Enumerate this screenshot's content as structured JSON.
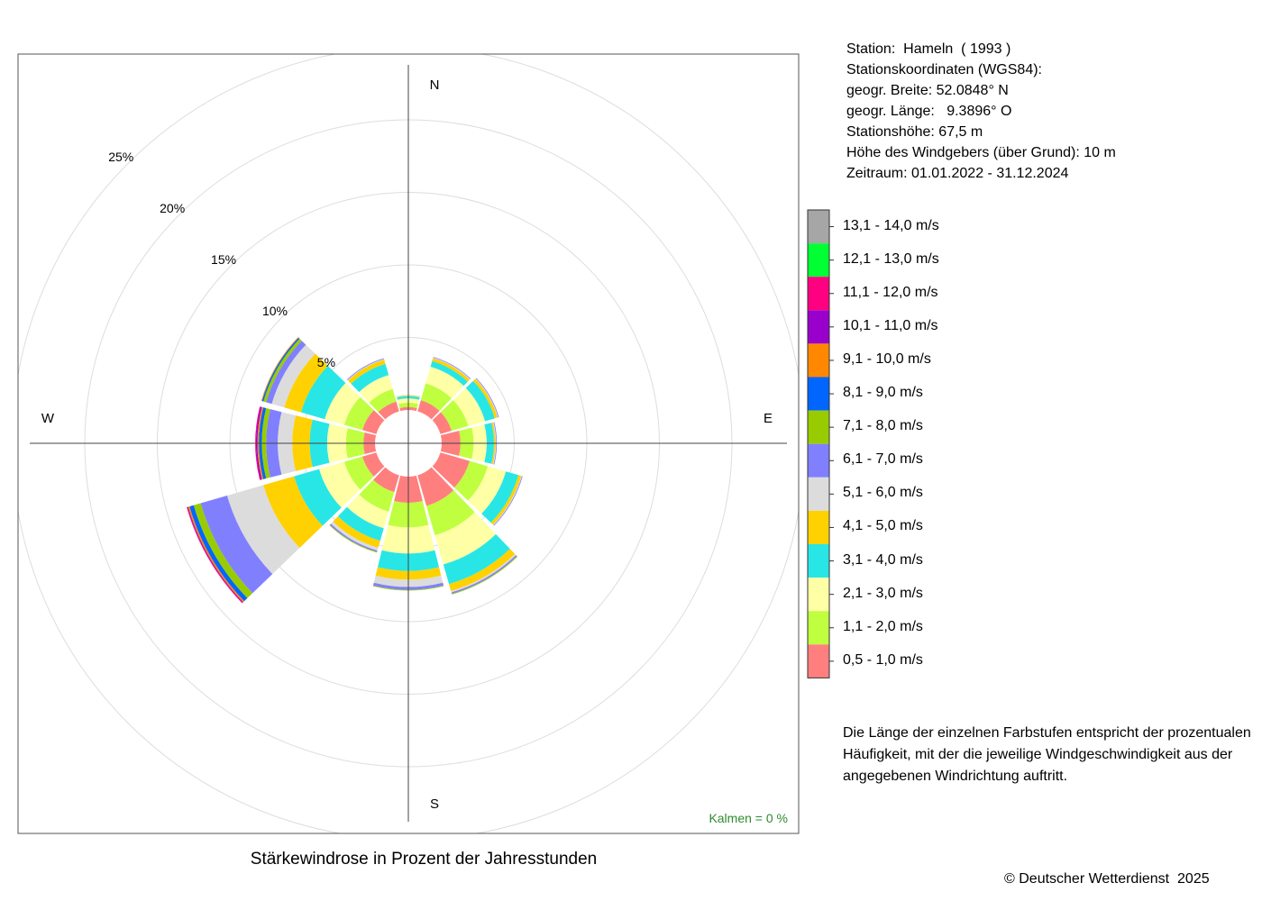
{
  "station": {
    "lines": [
      "Station:  Hameln  ( 1993 )",
      "Stationskoordinaten (WGS84):",
      "geogr. Breite: 52.0848° N",
      "geogr. Länge:   9.3896° O",
      "Stationshöhe: 67,5 m",
      "Höhe des Windgebers (über Grund): 10 m",
      "Zeitraum: 01.01.2022 - 31.12.2024"
    ]
  },
  "description": {
    "lines": [
      "Die Länge der einzelnen Farbstufen entspricht der prozentualen",
      "Häufigkeit, mit der die jeweilige Windgeschwindigkeit aus der",
      "angegebenen Windrichtung auftritt."
    ]
  },
  "copyright": "© Deutscher Wetterdienst  2025",
  "chart_data": {
    "type": "polar-stacked-bar",
    "title": "Stärkewindrose in Prozent der Jahresstunden",
    "calm_label": "Kalmen  =  0 %",
    "direction_labels": {
      "n": "N",
      "e": "E",
      "s": "S",
      "w": "W"
    },
    "ring_labels": [
      "5%",
      "10%",
      "15%",
      "20%",
      "25%"
    ],
    "rings_percent": [
      5,
      10,
      15,
      20,
      25
    ],
    "sectors_degrees": [
      0,
      30,
      60,
      90,
      120,
      150,
      180,
      210,
      240,
      270,
      300,
      330
    ],
    "sector_width_degrees": 30,
    "speed_classes": [
      {
        "label": "0,5 - 1,0 m/s",
        "color": "#ff7f7f"
      },
      {
        "label": "1,1 - 2,0 m/s",
        "color": "#bfff3f"
      },
      {
        "label": "2,1 - 3,0 m/s",
        "color": "#ffffa6"
      },
      {
        "label": "3,1 - 4,0 m/s",
        "color": "#28e6e6"
      },
      {
        "label": "4,1 - 5,0 m/s",
        "color": "#ffd100"
      },
      {
        "label": "5,1 - 6,0 m/s",
        "color": "#dcdcdc"
      },
      {
        "label": "6,1 - 7,0 m/s",
        "color": "#8080ff"
      },
      {
        "label": "7,1 - 8,0 m/s",
        "color": "#99cc00"
      },
      {
        "label": "8,1 - 9,0 m/s",
        "color": "#0066ff"
      },
      {
        "label": "9,1 - 10,0 m/s",
        "color": "#ff8800"
      },
      {
        "label": "10,1 - 11,0 m/s",
        "color": "#9900cc"
      },
      {
        "label": "11,1 - 12,0 m/s",
        "color": "#ff0080"
      },
      {
        "label": "12,1 - 13,0 m/s",
        "color": "#00ff33"
      },
      {
        "label": "13,1 - 14,0 m/s",
        "color": "#a6a6a6"
      }
    ],
    "series": [
      {
        "direction": 0,
        "values": [
          0.2,
          0.3,
          0.3,
          0.15,
          0.05,
          0.05,
          0,
          0,
          0,
          0,
          0,
          0,
          0,
          0
        ]
      },
      {
        "direction": 30,
        "values": [
          0.8,
          1.2,
          1.2,
          0.4,
          0.2,
          0.05,
          0.05,
          0,
          0,
          0,
          0,
          0,
          0,
          0
        ]
      },
      {
        "direction": 60,
        "values": [
          0.8,
          1.2,
          1.2,
          0.7,
          0.2,
          0.05,
          0.05,
          0,
          0,
          0,
          0,
          0,
          0,
          0
        ]
      },
      {
        "direction": 90,
        "values": [
          1.3,
          0.9,
          0.9,
          0.5,
          0.1,
          0.05,
          0.05,
          0,
          0,
          0,
          0,
          0,
          0,
          0
        ]
      },
      {
        "direction": 120,
        "values": [
          2.1,
          1.3,
          1.3,
          0.9,
          0.2,
          0.05,
          0.05,
          0,
          0,
          0,
          0,
          0,
          0,
          0
        ]
      },
      {
        "direction": 150,
        "values": [
          2.2,
          2.1,
          2.1,
          1.4,
          0.5,
          0.1,
          0.1,
          0.05,
          0,
          0,
          0,
          0,
          0,
          0
        ]
      },
      {
        "direction": 180,
        "values": [
          1.8,
          1.7,
          1.8,
          1.2,
          0.6,
          0.5,
          0.2,
          0.05,
          0,
          0,
          0,
          0,
          0,
          0
        ]
      },
      {
        "direction": 210,
        "values": [
          1.2,
          1.4,
          1.2,
          0.9,
          0.5,
          0.2,
          0.1,
          0.05,
          0,
          0,
          0,
          0,
          0,
          0
        ]
      },
      {
        "direction": 240,
        "values": [
          1.0,
          1.3,
          1.8,
          1.8,
          2.2,
          2.6,
          1.9,
          0.5,
          0.3,
          0.1,
          0.05,
          0.05,
          0,
          0
        ]
      },
      {
        "direction": 270,
        "values": [
          0.8,
          1.2,
          1.3,
          1.2,
          1.2,
          1.0,
          0.8,
          0.3,
          0.2,
          0.1,
          0.1,
          0.05,
          0,
          0
        ]
      },
      {
        "direction": 300,
        "values": [
          1.0,
          1.3,
          1.4,
          1.7,
          1.2,
          0.9,
          0.4,
          0.2,
          0.1,
          0.05,
          0,
          0,
          0,
          0
        ]
      },
      {
        "direction": 330,
        "values": [
          0.7,
          0.9,
          1.0,
          0.8,
          0.3,
          0.05,
          0.05,
          0,
          0,
          0,
          0,
          0,
          0,
          0
        ]
      }
    ],
    "grid": true,
    "legend_placement": "right"
  }
}
